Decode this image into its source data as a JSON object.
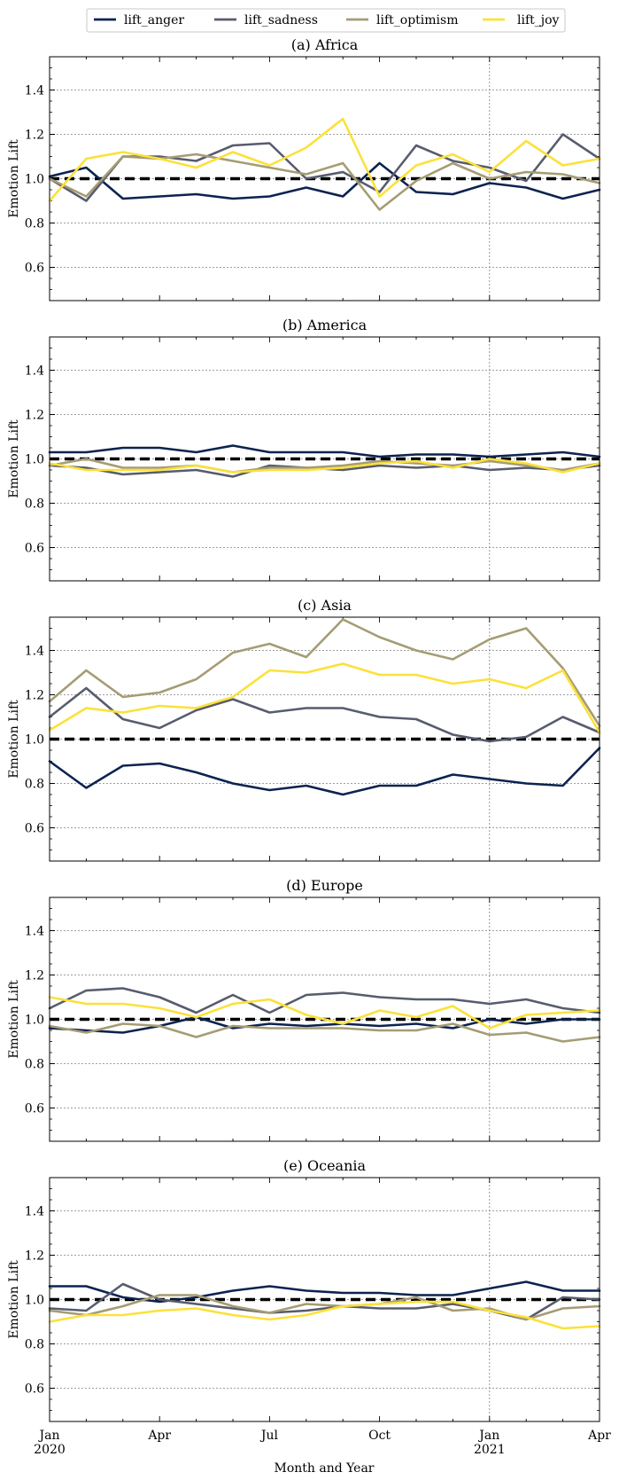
{
  "chart_data": {
    "type": "line",
    "legend": {
      "placement": "top-center",
      "entries": [
        "lift_anger",
        "lift_sadness",
        "lift_optimism",
        "lift_joy"
      ]
    },
    "xlabel": "Month and Year",
    "ylabel": "Emotion Lift",
    "ylim": [
      0.45,
      1.55
    ],
    "yticks": [
      "0.6",
      "0.8",
      "1.0",
      "1.2",
      "1.4"
    ],
    "xticks": [
      {
        "month": 0,
        "label": "Jan",
        "sub": "2020"
      },
      {
        "month": 3,
        "label": "Apr",
        "sub": ""
      },
      {
        "month": 6,
        "label": "Jul",
        "sub": ""
      },
      {
        "month": 9,
        "label": "Oct",
        "sub": ""
      },
      {
        "month": 12,
        "label": "Jan",
        "sub": "2021"
      },
      {
        "month": 15,
        "label": "Apr",
        "sub": ""
      }
    ],
    "x": [
      "2020-01",
      "2020-02",
      "2020-03",
      "2020-04",
      "2020-05",
      "2020-06",
      "2020-07",
      "2020-08",
      "2020-09",
      "2020-10",
      "2020-11",
      "2020-12",
      "2021-01",
      "2021-02",
      "2021-03",
      "2021-04"
    ],
    "reference_line": 1.0,
    "grid": true,
    "colors": {
      "lift_anger": "#0c2350",
      "lift_sadness": "#575c6d",
      "lift_optimism": "#a59c74",
      "lift_joy": "#fbe13a",
      "reference": "#000000"
    },
    "panels": [
      {
        "title": "(a) Africa",
        "series": [
          {
            "name": "lift_anger",
            "values": [
              1.01,
              1.05,
              0.91,
              0.92,
              0.93,
              0.91,
              0.92,
              0.96,
              0.92,
              1.07,
              0.94,
              0.93,
              0.98,
              0.96,
              0.91,
              0.95
            ]
          },
          {
            "name": "lift_sadness",
            "values": [
              1.0,
              0.9,
              1.1,
              1.1,
              1.08,
              1.15,
              1.16,
              1.0,
              1.03,
              0.94,
              1.15,
              1.08,
              1.05,
              0.99,
              1.2,
              1.09
            ]
          },
          {
            "name": "lift_optimism",
            "values": [
              1.0,
              0.92,
              1.1,
              1.09,
              1.11,
              1.08,
              1.05,
              1.02,
              1.07,
              0.86,
              0.99,
              1.07,
              1.0,
              1.03,
              1.02,
              0.98
            ]
          },
          {
            "name": "lift_joy",
            "values": [
              0.9,
              1.09,
              1.12,
              1.09,
              1.05,
              1.12,
              1.06,
              1.14,
              1.27,
              0.92,
              1.06,
              1.11,
              1.03,
              1.17,
              1.06,
              1.09
            ]
          }
        ]
      },
      {
        "title": "(b) America",
        "series": [
          {
            "name": "lift_anger",
            "values": [
              1.03,
              1.03,
              1.05,
              1.05,
              1.03,
              1.06,
              1.03,
              1.03,
              1.03,
              1.01,
              1.02,
              1.02,
              1.01,
              1.02,
              1.03,
              1.01
            ]
          },
          {
            "name": "lift_sadness",
            "values": [
              0.97,
              0.96,
              0.93,
              0.94,
              0.95,
              0.92,
              0.97,
              0.96,
              0.95,
              0.97,
              0.96,
              0.97,
              0.95,
              0.96,
              0.95,
              0.97
            ]
          },
          {
            "name": "lift_optimism",
            "values": [
              0.97,
              1.0,
              0.96,
              0.96,
              0.97,
              0.94,
              0.96,
              0.96,
              0.97,
              0.99,
              0.98,
              0.97,
              0.99,
              0.97,
              0.95,
              0.98
            ]
          },
          {
            "name": "lift_joy",
            "values": [
              0.98,
              0.95,
              0.95,
              0.95,
              0.97,
              0.94,
              0.95,
              0.95,
              0.96,
              0.98,
              0.99,
              0.96,
              1.0,
              0.98,
              0.94,
              0.98
            ]
          }
        ]
      },
      {
        "title": "(c) Asia",
        "series": [
          {
            "name": "lift_anger",
            "values": [
              0.9,
              0.78,
              0.88,
              0.89,
              0.85,
              0.8,
              0.77,
              0.79,
              0.75,
              0.79,
              0.79,
              0.84,
              0.82,
              0.8,
              0.79,
              0.96
            ]
          },
          {
            "name": "lift_sadness",
            "values": [
              1.1,
              1.23,
              1.09,
              1.05,
              1.13,
              1.18,
              1.12,
              1.14,
              1.14,
              1.1,
              1.09,
              1.02,
              0.99,
              1.01,
              1.1,
              1.03
            ]
          },
          {
            "name": "lift_optimism",
            "values": [
              1.17,
              1.31,
              1.19,
              1.21,
              1.27,
              1.39,
              1.43,
              1.37,
              1.54,
              1.46,
              1.4,
              1.36,
              1.45,
              1.5,
              1.32,
              1.06
            ]
          },
          {
            "name": "lift_joy",
            "values": [
              1.04,
              1.14,
              1.12,
              1.15,
              1.14,
              1.19,
              1.31,
              1.3,
              1.34,
              1.29,
              1.29,
              1.25,
              1.27,
              1.23,
              1.31,
              1.03
            ]
          }
        ]
      },
      {
        "title": "(d) Europe",
        "series": [
          {
            "name": "lift_anger",
            "values": [
              0.96,
              0.95,
              0.94,
              0.97,
              1.01,
              0.96,
              0.98,
              0.97,
              0.98,
              0.97,
              0.98,
              0.96,
              1.0,
              0.98,
              1.0,
              1.0
            ]
          },
          {
            "name": "lift_sadness",
            "values": [
              1.05,
              1.13,
              1.14,
              1.1,
              1.03,
              1.11,
              1.03,
              1.11,
              1.12,
              1.1,
              1.09,
              1.09,
              1.07,
              1.09,
              1.05,
              1.03
            ]
          },
          {
            "name": "lift_optimism",
            "values": [
              0.97,
              0.94,
              0.98,
              0.97,
              0.92,
              0.97,
              0.96,
              0.96,
              0.96,
              0.95,
              0.95,
              0.98,
              0.93,
              0.94,
              0.9,
              0.92
            ]
          },
          {
            "name": "lift_joy",
            "values": [
              1.1,
              1.07,
              1.07,
              1.05,
              1.01,
              1.07,
              1.09,
              1.02,
              0.98,
              1.04,
              1.01,
              1.06,
              0.96,
              1.02,
              1.03,
              1.04
            ]
          }
        ]
      },
      {
        "title": "(e) Oceania",
        "series": [
          {
            "name": "lift_anger",
            "values": [
              1.06,
              1.06,
              1.01,
              0.99,
              1.01,
              1.04,
              1.06,
              1.04,
              1.03,
              1.03,
              1.02,
              1.02,
              1.05,
              1.08,
              1.04,
              1.04
            ]
          },
          {
            "name": "lift_sadness",
            "values": [
              0.96,
              0.95,
              1.07,
              1.0,
              0.98,
              0.96,
              0.94,
              0.95,
              0.97,
              0.96,
              0.96,
              0.98,
              0.95,
              0.91,
              1.01,
              1.0
            ]
          },
          {
            "name": "lift_optimism",
            "values": [
              0.95,
              0.93,
              0.97,
              1.02,
              1.02,
              0.97,
              0.94,
              0.98,
              0.97,
              0.98,
              1.01,
              0.95,
              0.96,
              0.91,
              0.96,
              0.97
            ]
          },
          {
            "name": "lift_joy",
            "values": [
              0.9,
              0.93,
              0.93,
              0.95,
              0.96,
              0.93,
              0.91,
              0.93,
              0.97,
              0.98,
              0.99,
              0.99,
              0.95,
              0.92,
              0.87,
              0.88
            ]
          }
        ]
      }
    ]
  }
}
